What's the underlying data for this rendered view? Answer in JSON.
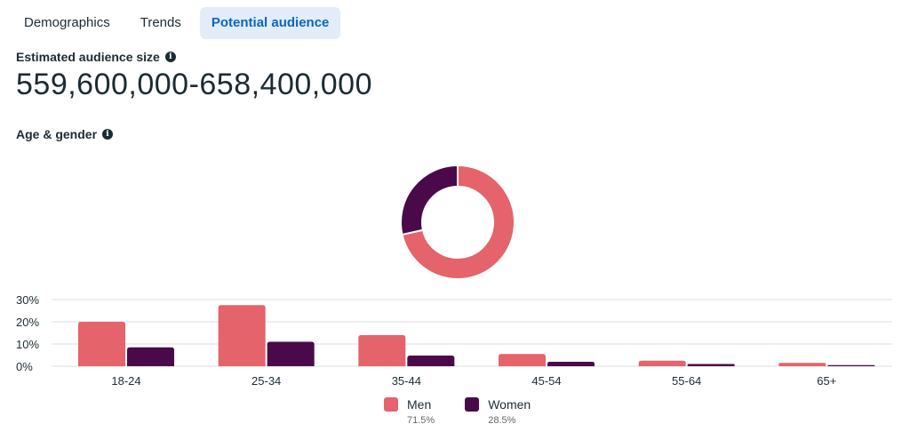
{
  "tabs": [
    {
      "label": "Demographics",
      "active": false
    },
    {
      "label": "Trends",
      "active": false
    },
    {
      "label": "Potential audience",
      "active": true
    }
  ],
  "audience": {
    "label": "Estimated audience size",
    "value": "559,600,000-658,400,000"
  },
  "age_gender_label": "Age & gender",
  "colors": {
    "men": "#e5636a",
    "women": "#4a0a4a",
    "grid": "#dddfe2",
    "accent": "#0a66c2"
  },
  "icons": {
    "info": "info-icon"
  },
  "legend": [
    {
      "name": "Men",
      "pct": "71.5%"
    },
    {
      "name": "Women",
      "pct": "28.5%"
    }
  ],
  "chart_data": [
    {
      "type": "pie",
      "labels": [
        "Men",
        "Women"
      ],
      "values": [
        71.5,
        28.5
      ],
      "donut": true
    },
    {
      "type": "bar",
      "categories": [
        "18-24",
        "25-34",
        "35-44",
        "45-54",
        "55-64",
        "65+"
      ],
      "series": [
        {
          "name": "Men",
          "values": [
            20,
            27.5,
            14,
            5.5,
            2.5,
            1.5
          ]
        },
        {
          "name": "Women",
          "values": [
            8.5,
            11,
            4.8,
            2,
            1,
            0.5
          ]
        }
      ],
      "yticks": [
        "30%",
        "20%",
        "10%",
        "0%"
      ],
      "ylim": [
        0,
        30
      ],
      "grid": true
    }
  ]
}
